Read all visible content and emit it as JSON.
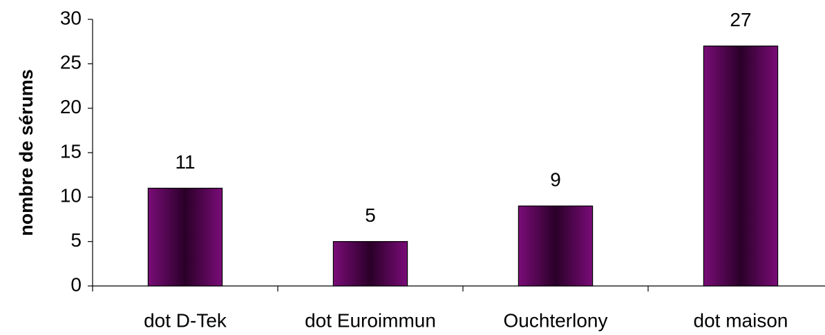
{
  "chart_data": {
    "type": "bar",
    "ylabel": "nombre de sérums",
    "categories": [
      "dot D-Tek",
      "dot Euroimmun",
      "Ouchterlony",
      "dot maison"
    ],
    "values": [
      11,
      5,
      9,
      27
    ],
    "color": "#66005f",
    "ylim": [
      0,
      30
    ],
    "yticks": [
      0,
      5,
      10,
      15,
      20,
      25,
      30
    ],
    "grid": false,
    "value_labels_shown": true
  }
}
